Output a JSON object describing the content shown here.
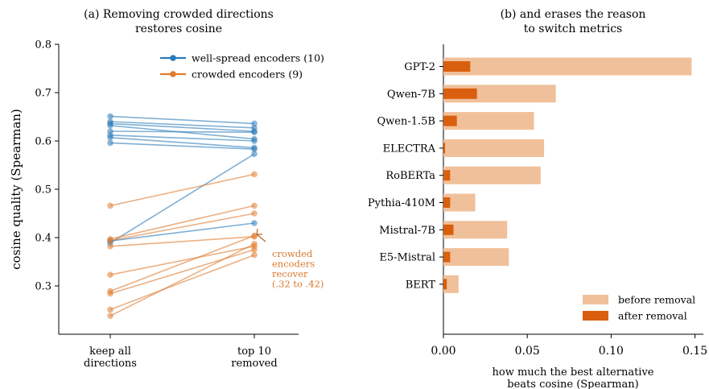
{
  "chart_data": [
    {
      "type": "line",
      "title": "(a) Removing crowded directions restores cosine",
      "title_lines": [
        "(a) Removing crowded directions",
        "restores cosine"
      ],
      "ylabel": "cosine quality (Spearman)",
      "x": [
        "keep all directions",
        "top 10 removed"
      ],
      "x_tick_lines": [
        [
          "keep all",
          "directions"
        ],
        [
          "top 10",
          "removed"
        ]
      ],
      "ylim": [
        0.2,
        0.8
      ],
      "yticks": [
        0.3,
        0.4,
        0.5,
        0.6,
        0.7,
        0.8
      ],
      "ytick_labels": [
        "0.3",
        "0.4",
        "0.5",
        "0.6",
        "0.7",
        "0.8"
      ],
      "legend_position": "top-right",
      "series": [
        {
          "name": "well-spread encoders (10)",
          "color": "#2b7bb9",
          "lines": [
            [
              0.651,
              0.636
            ],
            [
              0.64,
              0.627
            ],
            [
              0.636,
              0.62
            ],
            [
              0.632,
              0.604
            ],
            [
              0.62,
              0.618
            ],
            [
              0.612,
              0.6
            ],
            [
              0.607,
              0.586
            ],
            [
              0.596,
              0.583
            ],
            [
              0.393,
              0.43
            ],
            [
              0.389,
              0.573
            ]
          ]
        },
        {
          "name": "crowded encoders (9)",
          "color": "#e07b2f",
          "lines": [
            [
              0.466,
              0.531
            ],
            [
              0.397,
              0.466
            ],
            [
              0.394,
              0.45
            ],
            [
              0.382,
              0.402
            ],
            [
              0.323,
              0.382
            ],
            [
              0.289,
              0.404
            ],
            [
              0.284,
              0.375
            ],
            [
              0.251,
              0.364
            ],
            [
              0.238,
              0.387
            ]
          ]
        }
      ],
      "annotation": {
        "text_lines": [
          "crowded",
          "encoders",
          "recover",
          "(.32 to .42)"
        ],
        "arrow_to": {
          "x": "top 10 removed",
          "y": 0.405
        }
      }
    },
    {
      "type": "bar",
      "orientation": "horizontal",
      "title": "(b) and erases the reason to switch metrics",
      "title_lines": [
        "(b) and erases the reason",
        "to switch metrics"
      ],
      "xlabel": "how much the best alternative beats cosine (Spearman)",
      "xlabel_lines": [
        "how much the best alternative",
        "beats cosine (Spearman)"
      ],
      "xlim": [
        0,
        0.155
      ],
      "xticks": [
        0.0,
        0.05,
        0.1,
        0.15
      ],
      "xtick_labels": [
        "0.00",
        "0.05",
        "0.10",
        "0.15"
      ],
      "categories": [
        "GPT-2",
        "Qwen-7B",
        "Qwen-1.5B",
        "ELECTRA",
        "RoBERTa",
        "Pythia-410M",
        "Mistral-7B",
        "E5-Mistral",
        "BERT"
      ],
      "legend_position": "bottom-right",
      "series": [
        {
          "name": "before removal",
          "color": "#f0c09a",
          "values": [
            0.148,
            0.067,
            0.054,
            0.06,
            0.058,
            0.019,
            0.038,
            0.039,
            0.009
          ]
        },
        {
          "name": "after removal",
          "color": "#d95f0e",
          "values": [
            0.016,
            0.02,
            0.008,
            0.001,
            0.004,
            0.004,
            0.006,
            0.004,
            0.002
          ]
        }
      ]
    }
  ]
}
